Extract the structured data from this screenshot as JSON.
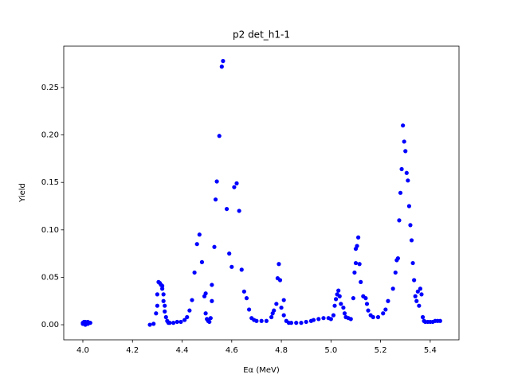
{
  "chart_data": {
    "type": "scatter",
    "title": "p2 det_h1-1",
    "x_label": "Eα (MeV)",
    "y_label": "Yield",
    "color": "#0000ff",
    "xlim": [
      3.923,
      5.516
    ],
    "ylim": [
      -0.0159,
      0.2936
    ],
    "xticks": [
      {
        "value": 4.0,
        "label": "4.0"
      },
      {
        "value": 4.2,
        "label": "4.2"
      },
      {
        "value": 4.4,
        "label": "4.4"
      },
      {
        "value": 4.6,
        "label": "4.6"
      },
      {
        "value": 4.8,
        "label": "4.8"
      },
      {
        "value": 5.0,
        "label": "5.0"
      },
      {
        "value": 5.2,
        "label": "5.2"
      },
      {
        "value": 5.4,
        "label": "5.4"
      }
    ],
    "yticks": [
      {
        "value": 0,
        "label": "0.00"
      },
      {
        "value": 0.05,
        "label": "0.05"
      },
      {
        "value": 0.1,
        "label": "0.10"
      },
      {
        "value": 0.15,
        "label": "0.15"
      },
      {
        "value": 0.2,
        "label": "0.20"
      },
      {
        "value": 0.25,
        "label": "0.25"
      }
    ],
    "x": [
      4.0,
      4.005,
      4.01,
      4.015,
      4.02,
      4.025,
      4.03,
      4.0,
      4.01,
      4.02,
      4.27,
      4.285,
      4.295,
      4.3,
      4.3,
      4.305,
      4.31,
      4.315,
      4.32,
      4.32,
      4.325,
      4.325,
      4.33,
      4.33,
      4.335,
      4.34,
      4.345,
      4.35,
      4.365,
      4.38,
      4.395,
      4.41,
      4.42,
      4.43,
      4.44,
      4.45,
      4.46,
      4.47,
      4.48,
      4.49,
      4.495,
      4.495,
      4.5,
      4.505,
      4.51,
      4.515,
      4.52,
      4.52,
      4.53,
      4.535,
      4.54,
      4.55,
      4.56,
      4.565,
      4.58,
      4.59,
      4.6,
      4.61,
      4.62,
      4.63,
      4.64,
      4.65,
      4.66,
      4.67,
      4.68,
      4.69,
      4.7,
      4.72,
      4.74,
      4.76,
      4.765,
      4.77,
      4.78,
      4.785,
      4.79,
      4.795,
      4.8,
      4.81,
      4.81,
      4.82,
      4.83,
      4.84,
      4.86,
      4.88,
      4.9,
      4.92,
      4.93,
      4.95,
      4.97,
      4.99,
      5.0,
      5.01,
      5.015,
      5.02,
      5.025,
      5.03,
      5.035,
      5.04,
      5.05,
      5.055,
      5.06,
      5.07,
      5.08,
      5.09,
      5.095,
      5.1,
      5.1,
      5.105,
      5.11,
      5.115,
      5.12,
      5.13,
      5.14,
      5.145,
      5.15,
      5.16,
      5.17,
      5.19,
      5.21,
      5.22,
      5.23,
      5.25,
      5.26,
      5.265,
      5.27,
      5.275,
      5.28,
      5.285,
      5.29,
      5.295,
      5.3,
      5.305,
      5.31,
      5.315,
      5.32,
      5.325,
      5.33,
      5.335,
      5.34,
      5.345,
      5.35,
      5.355,
      5.36,
      5.365,
      5.37,
      5.375,
      5.38,
      5.39,
      5.4,
      5.41,
      5.42,
      5.43,
      5.44
    ],
    "values": [
      0.001,
      0.003,
      0.0,
      0.002,
      0.003,
      0.002,
      0.002,
      0.002,
      0.003,
      0.001,
      0.0,
      0.001,
      0.012,
      0.02,
      0.032,
      0.045,
      0.044,
      0.042,
      0.041,
      0.038,
      0.032,
      0.025,
      0.02,
      0.014,
      0.008,
      0.004,
      0.002,
      0.002,
      0.002,
      0.003,
      0.003,
      0.005,
      0.008,
      0.015,
      0.026,
      0.055,
      0.085,
      0.095,
      0.066,
      0.03,
      0.033,
      0.012,
      0.006,
      0.004,
      0.003,
      0.007,
      0.025,
      0.042,
      0.082,
      0.132,
      0.151,
      0.199,
      0.272,
      0.278,
      0.122,
      0.075,
      0.061,
      0.145,
      0.149,
      0.12,
      0.058,
      0.035,
      0.028,
      0.016,
      0.007,
      0.005,
      0.004,
      0.004,
      0.004,
      0.008,
      0.012,
      0.015,
      0.022,
      0.049,
      0.064,
      0.047,
      0.018,
      0.026,
      0.01,
      0.004,
      0.002,
      0.002,
      0.002,
      0.002,
      0.003,
      0.004,
      0.005,
      0.006,
      0.007,
      0.007,
      0.006,
      0.01,
      0.02,
      0.027,
      0.032,
      0.036,
      0.03,
      0.022,
      0.018,
      0.012,
      0.008,
      0.007,
      0.006,
      0.028,
      0.055,
      0.065,
      0.08,
      0.083,
      0.092,
      0.064,
      0.045,
      0.03,
      0.028,
      0.022,
      0.015,
      0.01,
      0.008,
      0.008,
      0.012,
      0.016,
      0.025,
      0.038,
      0.055,
      0.068,
      0.07,
      0.11,
      0.139,
      0.164,
      0.21,
      0.193,
      0.183,
      0.16,
      0.152,
      0.125,
      0.105,
      0.089,
      0.065,
      0.047,
      0.03,
      0.025,
      0.035,
      0.02,
      0.038,
      0.032,
      0.008,
      0.004,
      0.003,
      0.003,
      0.003,
      0.003,
      0.004,
      0.004,
      0.004
    ]
  }
}
